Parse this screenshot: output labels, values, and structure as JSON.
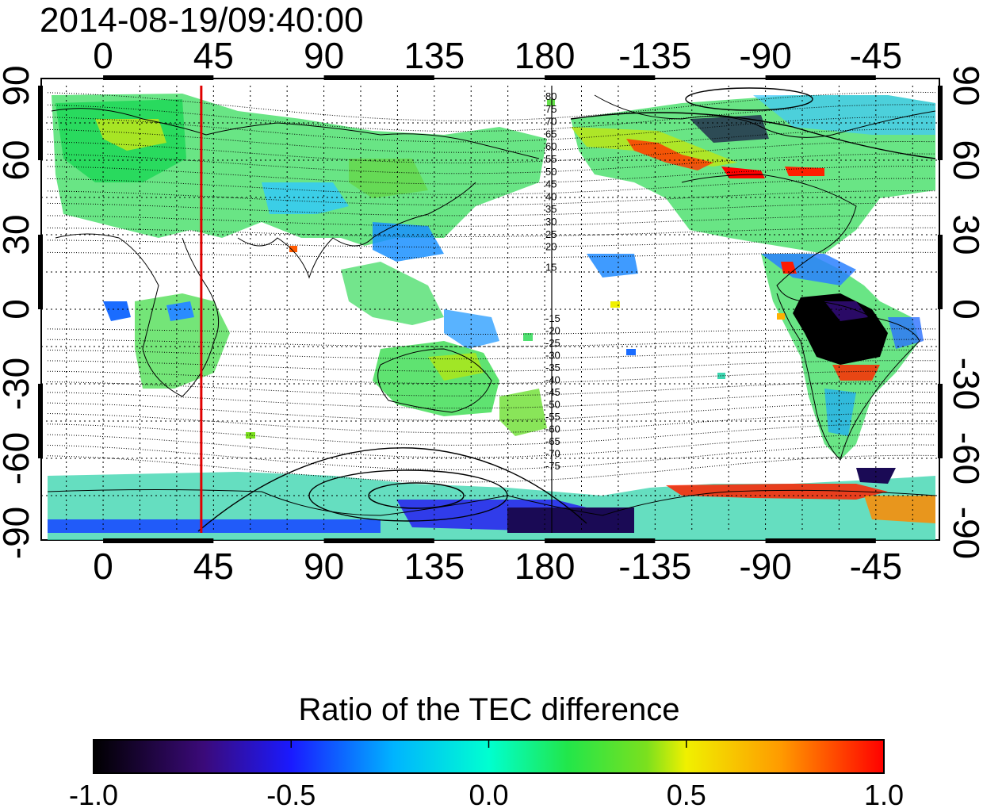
{
  "title": "2014-08-19/09:40:00",
  "map": {
    "lon_ticks": [
      "0",
      "45",
      "90",
      "135",
      "180",
      "-135",
      "-90",
      "-45"
    ],
    "lat_ticks_left": [
      "90",
      "60",
      "30",
      "0",
      "-30",
      "-60",
      "-90"
    ],
    "lat_ticks_right": [
      "90",
      "60",
      "30",
      "0",
      "-30",
      "-60",
      "-90"
    ],
    "contour_labels_north": [
      "80",
      "75",
      "70",
      "65",
      "60",
      "55",
      "50",
      "45",
      "40",
      "35",
      "30",
      "25",
      "20",
      "15"
    ],
    "contour_labels_south": [
      "-15",
      "-20",
      "-25",
      "-30",
      "-35",
      "-40",
      "-45",
      "-50",
      "-55",
      "-60",
      "-65",
      "-70",
      "-75"
    ],
    "marker_line": {
      "longitude": 40,
      "color": "#e00000"
    }
  },
  "colorbar": {
    "title": "Ratio of the TEC difference",
    "tick_labels": [
      "-1.0",
      "-0.5",
      "0.0",
      "0.5",
      "1.0"
    ],
    "range": [
      -1.0,
      1.0
    ],
    "stops": [
      "#000000",
      "#3b0a7a",
      "#1a1aff",
      "#00b4ff",
      "#00ffd0",
      "#22e64a",
      "#7be01e",
      "#f0f000",
      "#ff9a00",
      "#ff0000"
    ]
  },
  "regions": [
    {
      "id": "europe-asia-north",
      "level": 0.05
    },
    {
      "id": "north-america",
      "level": 0.15
    },
    {
      "id": "australia",
      "level": 0.1
    },
    {
      "id": "south-america-core",
      "level": -0.95
    },
    {
      "id": "antarctic-band",
      "level": -0.7
    },
    {
      "id": "canada-arc",
      "level": 0.85
    }
  ]
}
